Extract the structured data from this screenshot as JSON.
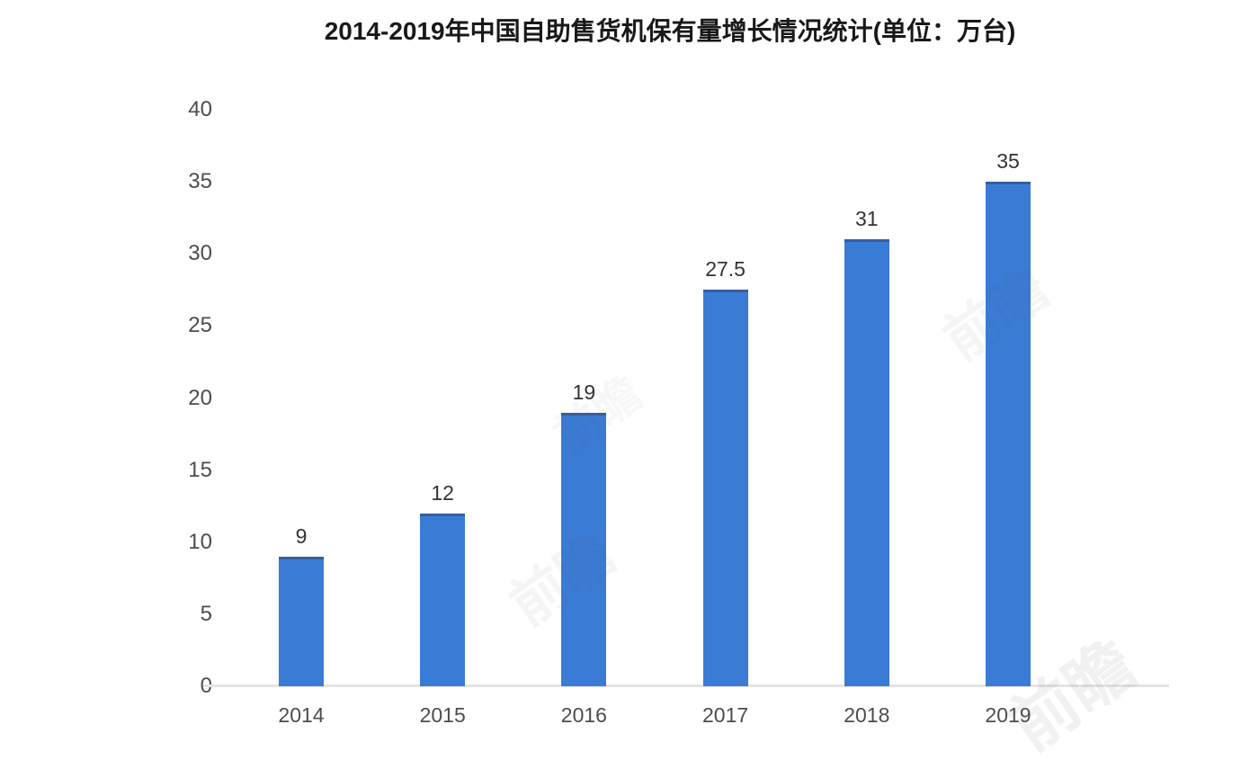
{
  "chart_data": {
    "type": "bar",
    "title": "2014-2019年中国自助售货机保有量增长情况统计(单位：万台)",
    "categories": [
      "2014",
      "2015",
      "2016",
      "2017",
      "2018",
      "2019"
    ],
    "values": [
      9,
      12,
      19,
      27.5,
      31,
      35
    ],
    "value_labels": [
      "9",
      "12",
      "19",
      "27.5",
      "31",
      "35"
    ],
    "xlabel": "",
    "ylabel": "",
    "ylim": [
      0,
      40
    ],
    "yticks": [
      0,
      5,
      10,
      15,
      20,
      25,
      30,
      35,
      40
    ],
    "unit": "万台",
    "bar_color": "#3a7bd5",
    "axis_line_color": "#e4e4e4",
    "grid": false,
    "legend_position": "none"
  },
  "watermark": {
    "text": "前瞻"
  }
}
